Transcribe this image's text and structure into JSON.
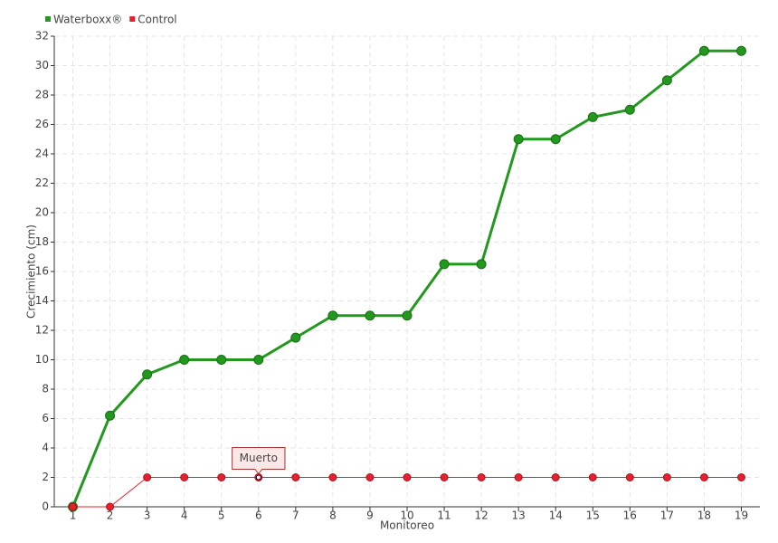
{
  "chart_data": {
    "type": "line",
    "x_label": "Monitoreo",
    "y_label": "Crecimiento (cm)",
    "categories": [
      "1",
      "2",
      "3",
      "4",
      "5",
      "6",
      "7",
      "8",
      "9",
      "10",
      "11",
      "12",
      "13",
      "14",
      "15",
      "16",
      "17",
      "18",
      "19"
    ],
    "series": [
      {
        "name": "Waterboxx®",
        "color": "#22991e",
        "values": [
          0,
          6.2,
          9,
          10,
          10,
          10,
          11.5,
          13,
          13,
          13,
          16.5,
          16.5,
          25,
          25,
          26.5,
          27,
          29,
          31,
          31
        ]
      },
      {
        "name": "Control",
        "color": "#e8202e",
        "values": [
          0,
          0,
          2,
          2,
          2,
          2,
          2,
          2,
          2,
          2,
          2,
          2,
          2,
          2,
          2,
          2,
          2,
          2,
          2
        ]
      }
    ],
    "annotations": [
      {
        "text": "Muerto",
        "category": "6"
      }
    ],
    "ylim": [
      0,
      32
    ],
    "yticks": [
      0,
      2,
      4,
      6,
      8,
      10,
      12,
      14,
      16,
      18,
      20,
      22,
      24,
      26,
      28,
      30,
      32
    ],
    "grid": true,
    "legend": "top-left"
  }
}
